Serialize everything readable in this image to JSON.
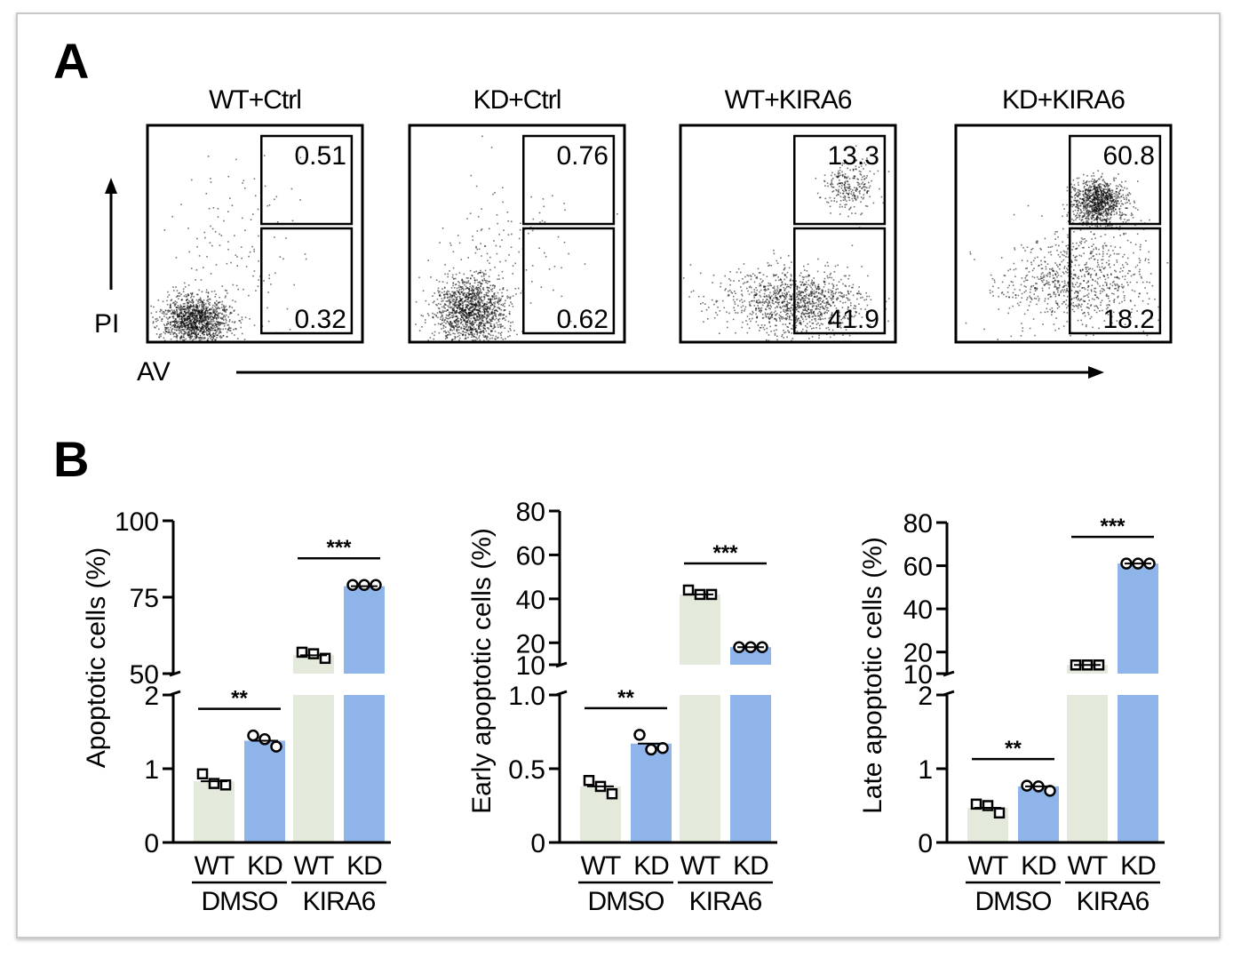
{
  "panel_a": {
    "label": "A",
    "y_axis_label": "PI",
    "x_axis_label": "AV",
    "plots": [
      {
        "title": "WT+Ctrl",
        "upper_gate": "0.51",
        "lower_gate": "0.32"
      },
      {
        "title": "KD+Ctrl",
        "upper_gate": "0.76",
        "lower_gate": "0.62"
      },
      {
        "title": "WT+KIRA6",
        "upper_gate": "13.3",
        "lower_gate": "41.9"
      },
      {
        "title": "KD+KIRA6",
        "upper_gate": "60.8",
        "lower_gate": "18.2"
      }
    ]
  },
  "panel_b": {
    "label": "B",
    "colors": {
      "wt": "#e3eadc",
      "kd": "#8fb4ea",
      "points": "#000000"
    },
    "x_labels": [
      "WT",
      "KD",
      "WT",
      "KD"
    ],
    "group_labels": [
      "DMSO",
      "KIRA6"
    ]
  },
  "chart_data": [
    {
      "type": "bar",
      "ylabel": "Apoptotic cells (%)",
      "categories": [
        "WT DMSO",
        "KD DMSO",
        "WT KIRA6",
        "KD KIRA6"
      ],
      "values": [
        0.83,
        1.38,
        56,
        78.6
      ],
      "points": [
        [
          0.93,
          0.8,
          0.78
        ],
        [
          1.45,
          1.4,
          1.3
        ],
        [
          57,
          56.5,
          55
        ],
        [
          79,
          79,
          79
        ]
      ],
      "y_axis_break": {
        "lower": [
          0,
          2
        ],
        "upper": [
          50,
          100
        ]
      },
      "lower_ticks": [
        "0",
        "1",
        "2"
      ],
      "upper_ticks": [
        "50",
        "75",
        "100"
      ],
      "significance": [
        {
          "pair": [
            0,
            1
          ],
          "label": "**"
        },
        {
          "pair": [
            2,
            3
          ],
          "label": "***"
        }
      ]
    },
    {
      "type": "bar",
      "ylabel": "Early apoptotic cells (%)",
      "categories": [
        "WT DMSO",
        "KD DMSO",
        "WT KIRA6",
        "KD KIRA6"
      ],
      "values": [
        0.38,
        0.67,
        42,
        18
      ],
      "points": [
        [
          0.42,
          0.38,
          0.33
        ],
        [
          0.73,
          0.63,
          0.64
        ],
        [
          44,
          42,
          42
        ],
        [
          18,
          18,
          18
        ]
      ],
      "y_axis_break": {
        "lower": [
          0,
          1.0
        ],
        "upper": [
          10,
          80
        ]
      },
      "lower_ticks": [
        "0",
        "0.5",
        "1.0"
      ],
      "upper_ticks": [
        "10",
        "20",
        "40",
        "60",
        "80"
      ],
      "significance": [
        {
          "pair": [
            0,
            1
          ],
          "label": "**"
        },
        {
          "pair": [
            2,
            3
          ],
          "label": "***"
        }
      ]
    },
    {
      "type": "bar",
      "ylabel": "Late apoptotic cells (%)",
      "categories": [
        "WT DMSO",
        "KD DMSO",
        "WT KIRA6",
        "KD KIRA6"
      ],
      "values": [
        0.47,
        0.76,
        14,
        61
      ],
      "points": [
        [
          0.52,
          0.5,
          0.4
        ],
        [
          0.77,
          0.76,
          0.7
        ],
        [
          14,
          14,
          14
        ],
        [
          61,
          61,
          61
        ]
      ],
      "y_axis_break": {
        "lower": [
          0,
          2
        ],
        "upper": [
          10,
          80
        ]
      },
      "lower_ticks": [
        "0",
        "1",
        "2"
      ],
      "upper_ticks": [
        "10",
        "20",
        "40",
        "60",
        "80"
      ],
      "significance": [
        {
          "pair": [
            0,
            1
          ],
          "label": "**"
        },
        {
          "pair": [
            2,
            3
          ],
          "label": "***"
        }
      ]
    }
  ]
}
